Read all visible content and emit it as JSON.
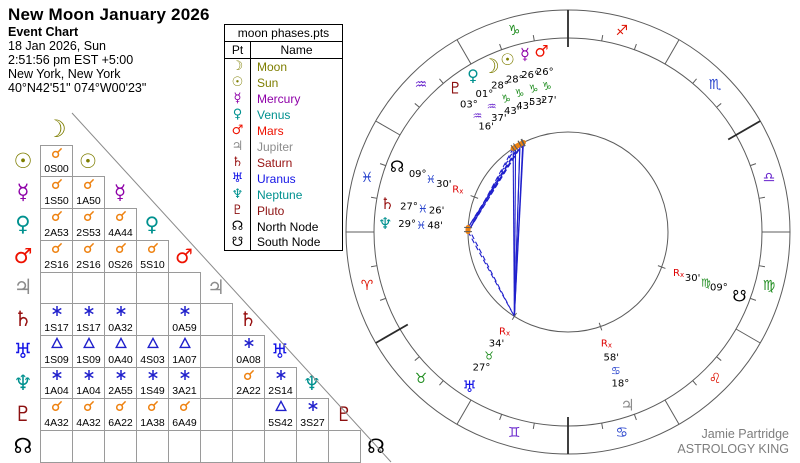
{
  "header": {
    "title": "New Moon January 2026",
    "subtitle": "Event Chart",
    "date": "18 Jan 2026, Sun",
    "time": "2:51:56 pm  EST +5:00",
    "location": "New York, New York",
    "coordinates": "40°N42'51\" 074°W00'23\""
  },
  "legend": {
    "title": "moon phases.pts",
    "col_pt": "Pt",
    "col_name": "Name",
    "rows": [
      {
        "glyph": "☽",
        "name": "Moon",
        "color": "#7e7e00"
      },
      {
        "glyph": "☉",
        "name": "Sun",
        "color": "#7e7e00"
      },
      {
        "glyph": "☿",
        "name": "Mercury",
        "color": "#8e00a8"
      },
      {
        "glyph": "♀",
        "name": "Venus",
        "color": "#00918f"
      },
      {
        "glyph": "♂",
        "name": "Mars",
        "color": "#ee1100"
      },
      {
        "glyph": "♃",
        "name": "Jupiter",
        "color": "#8c8c8c"
      },
      {
        "glyph": "♄",
        "name": "Saturn",
        "color": "#971111"
      },
      {
        "glyph": "♅",
        "name": "Uranus",
        "color": "#1414e6"
      },
      {
        "glyph": "♆",
        "name": "Neptune",
        "color": "#00918f"
      },
      {
        "glyph": "♇",
        "name": "Pluto",
        "color": "#8c1010"
      },
      {
        "glyph": "☊",
        "name": "North Node",
        "color": "#000000"
      },
      {
        "glyph": "☋",
        "name": "South Node",
        "color": "#000000"
      }
    ]
  },
  "aspect_grid": {
    "planets": [
      {
        "name": "Moon",
        "glyph": "☽",
        "color": "#7e7e00"
      },
      {
        "name": "Sun",
        "glyph": "☉",
        "color": "#7e7e00"
      },
      {
        "name": "Mercury",
        "glyph": "☿",
        "color": "#8e00a8"
      },
      {
        "name": "Venus",
        "glyph": "♀",
        "color": "#00918f"
      },
      {
        "name": "Mars",
        "glyph": "♂",
        "color": "#ee1100"
      },
      {
        "name": "Jupiter",
        "glyph": "♃",
        "color": "#8c8c8c"
      },
      {
        "name": "Saturn",
        "glyph": "♄",
        "color": "#971111"
      },
      {
        "name": "Uranus",
        "glyph": "♅",
        "color": "#1414e6"
      },
      {
        "name": "Neptune",
        "glyph": "♆",
        "color": "#00918f"
      },
      {
        "name": "Pluto",
        "glyph": "♇",
        "color": "#8c1010"
      },
      {
        "name": "North Node",
        "glyph": "☊",
        "color": "#000000"
      }
    ],
    "rows": [
      [],
      [
        {
          "a": "conjunction",
          "v": "0S00"
        }
      ],
      [
        {
          "a": "conjunction",
          "v": "1S50"
        },
        {
          "a": "conjunction",
          "v": "1A50"
        }
      ],
      [
        {
          "a": "conjunction",
          "v": "2A53"
        },
        {
          "a": "conjunction",
          "v": "2S53"
        },
        {
          "a": "conjunction",
          "v": "4A44"
        }
      ],
      [
        {
          "a": "conjunction",
          "v": "2S16"
        },
        {
          "a": "conjunction",
          "v": "2S16"
        },
        {
          "a": "conjunction",
          "v": "0S26"
        },
        {
          "a": "conjunction",
          "v": "5S10"
        }
      ],
      [
        null,
        null,
        null,
        null,
        null
      ],
      [
        {
          "a": "sextile",
          "v": "1S17"
        },
        {
          "a": "sextile",
          "v": "1S17"
        },
        {
          "a": "sextile",
          "v": "0A32"
        },
        null,
        {
          "a": "sextile",
          "v": "0A59"
        },
        null
      ],
      [
        {
          "a": "trine",
          "v": "1S09"
        },
        {
          "a": "trine",
          "v": "1S09"
        },
        {
          "a": "trine",
          "v": "0A40"
        },
        {
          "a": "trine",
          "v": "4S03"
        },
        {
          "a": "trine",
          "v": "1A07"
        },
        null,
        {
          "a": "sextile",
          "v": "0A08"
        }
      ],
      [
        {
          "a": "sextile",
          "v": "1A04"
        },
        {
          "a": "sextile",
          "v": "1A04"
        },
        {
          "a": "sextile",
          "v": "2A55"
        },
        {
          "a": "sextile",
          "v": "1S49"
        },
        {
          "a": "sextile",
          "v": "3A21"
        },
        null,
        {
          "a": "conjunction",
          "v": "2A22"
        },
        {
          "a": "sextile",
          "v": "2S14"
        }
      ],
      [
        {
          "a": "conjunction",
          "v": "4A32"
        },
        {
          "a": "conjunction",
          "v": "4A32"
        },
        {
          "a": "conjunction",
          "v": "6A22"
        },
        {
          "a": "conjunction",
          "v": "1A38"
        },
        {
          "a": "conjunction",
          "v": "6A49"
        },
        null,
        null,
        {
          "a": "trine",
          "v": "5S42"
        },
        {
          "a": "sextile",
          "v": "3S27"
        }
      ],
      [
        null,
        null,
        null,
        null,
        null,
        null,
        null,
        null,
        null,
        null
      ]
    ],
    "aspect_colors": {
      "conjunction": "#ee8211",
      "sextile": "#2020cc",
      "trine": "#2020cc"
    }
  },
  "wheel": {
    "signs": [
      {
        "name": "Aries",
        "glyph": "♈",
        "color": "#dd1100"
      },
      {
        "name": "Taurus",
        "glyph": "♉",
        "color": "#1e8c1e"
      },
      {
        "name": "Gemini",
        "glyph": "♊",
        "color": "#6622cc"
      },
      {
        "name": "Cancer",
        "glyph": "♋",
        "color": "#2440cc"
      },
      {
        "name": "Leo",
        "glyph": "♌",
        "color": "#dd1100"
      },
      {
        "name": "Virgo",
        "glyph": "♍",
        "color": "#1e8c1e"
      },
      {
        "name": "Libra",
        "glyph": "♎",
        "color": "#6622cc"
      },
      {
        "name": "Scorpio",
        "glyph": "♏",
        "color": "#2440cc"
      },
      {
        "name": "Sagittarius",
        "glyph": "♐",
        "color": "#dd1100"
      },
      {
        "name": "Capricorn",
        "glyph": "♑",
        "color": "#1e8c1e"
      },
      {
        "name": "Aquarius",
        "glyph": "♒",
        "color": "#6622cc"
      },
      {
        "name": "Pisces",
        "glyph": "♓",
        "color": "#2440cc"
      }
    ],
    "planets": [
      {
        "name": "Pluto",
        "glyph": "♇",
        "color": "#8c1010",
        "deg": "03°",
        "sign": "♒",
        "sign_color": "#6622cc",
        "min": "16'",
        "retro": false,
        "angle": 123.27,
        "display": 128
      },
      {
        "name": "Venus",
        "glyph": "♀",
        "color": "#00918f",
        "deg": "01°",
        "sign": "♒",
        "sign_color": "#6622cc",
        "min": "37'",
        "retro": false,
        "angle": 121.62,
        "display": 121.3
      },
      {
        "name": "Moon",
        "glyph": "☽",
        "color": "#7e7e00",
        "deg": "28°",
        "sign": "♑",
        "sign_color": "#1e8c1e",
        "min": "43'",
        "retro": false,
        "angle": 118.72,
        "display": 115.0
      },
      {
        "name": "Sun",
        "glyph": "☉",
        "color": "#7e7e00",
        "deg": "28°",
        "sign": "♑",
        "sign_color": "#1e8c1e",
        "min": "43'",
        "retro": false,
        "angle": 118.72,
        "display": 109.3
      },
      {
        "name": "Mercury",
        "glyph": "☿",
        "color": "#8e00a8",
        "deg": "26°",
        "sign": "♑",
        "sign_color": "#1e8c1e",
        "min": "53'",
        "retro": false,
        "angle": 116.88,
        "display": 103.6
      },
      {
        "name": "Mars",
        "glyph": "♂",
        "color": "#ee1100",
        "deg": "26°",
        "sign": "♑",
        "sign_color": "#1e8c1e",
        "min": "27'",
        "retro": false,
        "angle": 116.45,
        "display": 98.3
      },
      {
        "name": "North Node",
        "glyph": "☊",
        "color": "#000000",
        "deg": "09°",
        "sign": "♓",
        "sign_color": "#2440cc",
        "min": "30'",
        "retro": true,
        "angle": 159.5,
        "display": 159.0
      },
      {
        "name": "Saturn",
        "glyph": "♄",
        "color": "#971111",
        "deg": "27°",
        "sign": "♓",
        "sign_color": "#2440cc",
        "min": "26'",
        "retro": false,
        "angle": 177.43,
        "display": 171.0
      },
      {
        "name": "Neptune",
        "glyph": "♆",
        "color": "#00918f",
        "deg": "29°",
        "sign": "♓",
        "sign_color": "#2440cc",
        "min": "48'",
        "retro": false,
        "angle": 179.8,
        "display": 177.4
      },
      {
        "name": "Uranus",
        "glyph": "♅",
        "color": "#1414e6",
        "deg": "27°",
        "sign": "♉",
        "sign_color": "#1e8c1e",
        "min": "34'",
        "retro": true,
        "angle": 237.57,
        "display": 237.5
      },
      {
        "name": "Jupiter",
        "glyph": "♃",
        "color": "#8c8c8c",
        "deg": "18°",
        "sign": "♋",
        "sign_color": "#2440cc",
        "min": "58'",
        "retro": true,
        "angle": 288.97,
        "display": 289.0
      },
      {
        "name": "South Node",
        "glyph": "☋",
        "color": "#000000",
        "deg": "09°",
        "sign": "♍",
        "sign_color": "#1e8c1e",
        "min": "30'",
        "retro": true,
        "angle": 339.5,
        "display": 339.6
      }
    ],
    "retro_label": "Rx",
    "retro_color": "#dd0000",
    "aspect_lines": {
      "trine": [
        [
          "Moon",
          "Uranus"
        ],
        [
          "Sun",
          "Uranus"
        ],
        [
          "Mercury",
          "Uranus"
        ],
        [
          "Venus",
          "Uranus"
        ],
        [
          "Mars",
          "Uranus"
        ],
        [
          "Pluto",
          "Uranus"
        ]
      ],
      "sextile": [
        [
          "Moon",
          "Saturn"
        ],
        [
          "Sun",
          "Saturn"
        ],
        [
          "Mercury",
          "Saturn"
        ],
        [
          "Mars",
          "Saturn"
        ],
        [
          "Moon",
          "Neptune"
        ],
        [
          "Sun",
          "Neptune"
        ],
        [
          "Mercury",
          "Neptune"
        ],
        [
          "Venus",
          "Neptune"
        ],
        [
          "Mars",
          "Neptune"
        ],
        [
          "Saturn",
          "Uranus"
        ],
        [
          "Neptune",
          "Uranus"
        ],
        [
          "Pluto",
          "Neptune"
        ]
      ]
    },
    "conjunction_arcs": [
      [
        116.45,
        123.27
      ],
      [
        177.43,
        179.8
      ]
    ],
    "angle_cusps": [
      30,
      90,
      210,
      270
    ]
  },
  "watermark": {
    "line1": "Jamie Partridge",
    "line2": "ASTROLOGY KING"
  }
}
